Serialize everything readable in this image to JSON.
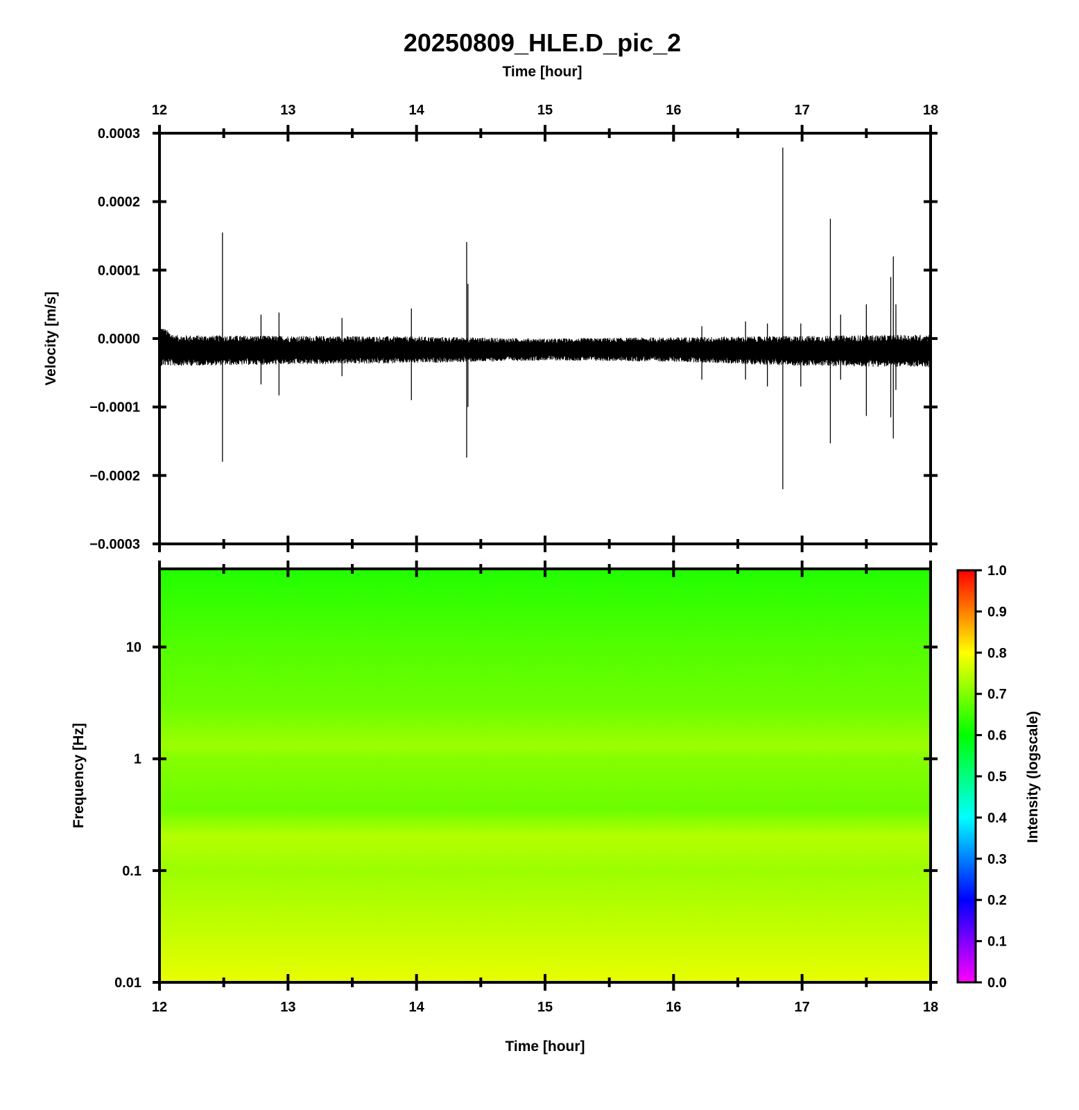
{
  "chart_data": [
    {
      "type": "line",
      "title": "20250809_HLE.D_pic_2",
      "xlabel": "Time [hour]",
      "ylabel": "Velocity [m/s]",
      "xlim": [
        12,
        18
      ],
      "ylim": [
        -0.0003,
        0.0003
      ],
      "x_ticks": [
        "12",
        "13",
        "14",
        "15",
        "16",
        "17",
        "18"
      ],
      "y_ticks": [
        "0.0003",
        "0.0002",
        "0.0001",
        "0.0000",
        "−0.0001",
        "−0.0002",
        "−0.0003"
      ],
      "grid": false,
      "series_color": "#000000",
      "baseline": -2e-05,
      "noise_band": [
        {
          "x": 12.0,
          "min": -4e-05,
          "max": 2e-05
        },
        {
          "x": 12.12,
          "min": -4e-05,
          "max": 5e-06
        },
        {
          "x": 13.0,
          "min": -3.8e-05,
          "max": 4e-06
        },
        {
          "x": 14.0,
          "min": -3.6e-05,
          "max": 3e-06
        },
        {
          "x": 15.0,
          "min": -3.2e-05,
          "max": 0.0
        },
        {
          "x": 16.0,
          "min": -3.4e-05,
          "max": 2e-06
        },
        {
          "x": 17.0,
          "min": -4e-05,
          "max": 4e-06
        },
        {
          "x": 18.0,
          "min": -4.2e-05,
          "max": 6e-06
        }
      ],
      "spikes": [
        {
          "x": 12.49,
          "max": 0.000155,
          "min": -0.00018
        },
        {
          "x": 12.79,
          "max": 3.5e-05,
          "min": -6.7e-05
        },
        {
          "x": 12.93,
          "max": 3.8e-05,
          "min": -8.3e-05
        },
        {
          "x": 13.42,
          "max": 3e-05,
          "min": -5.5e-05
        },
        {
          "x": 13.96,
          "max": 4.4e-05,
          "min": -9e-05
        },
        {
          "x": 14.39,
          "max": 0.000141,
          "min": -0.000174
        },
        {
          "x": 14.4,
          "max": 8e-05,
          "min": -0.0001
        },
        {
          "x": 16.22,
          "max": 1.8e-05,
          "min": -6e-05
        },
        {
          "x": 16.56,
          "max": 2.5e-05,
          "min": -6e-05
        },
        {
          "x": 16.73,
          "max": 2.2e-05,
          "min": -7e-05
        },
        {
          "x": 16.85,
          "max": 0.000279,
          "min": -0.00022
        },
        {
          "x": 16.99,
          "max": 2.2e-05,
          "min": -7e-05
        },
        {
          "x": 17.22,
          "max": 0.000175,
          "min": -0.000153
        },
        {
          "x": 17.3,
          "max": 3.5e-05,
          "min": -6e-05
        },
        {
          "x": 17.5,
          "max": 5e-05,
          "min": -0.000113
        },
        {
          "x": 17.69,
          "max": 9e-05,
          "min": -0.000115
        },
        {
          "x": 17.71,
          "max": 0.00012,
          "min": -0.000146
        },
        {
          "x": 17.73,
          "max": 5e-05,
          "min": -7.5e-05
        }
      ]
    },
    {
      "type": "heatmap",
      "xlabel": "Time [hour]",
      "ylabel": "Frequency [Hz]",
      "xlim": [
        12,
        18
      ],
      "ylim": [
        0.01,
        50
      ],
      "yscale": "log",
      "x_ticks": [
        "12",
        "13",
        "14",
        "15",
        "16",
        "17",
        "18"
      ],
      "y_ticks": [
        {
          "value": 10,
          "label": "10"
        },
        {
          "value": 1,
          "label": "1"
        },
        {
          "value": 0.1,
          "label": "0.1"
        },
        {
          "value": 0.01,
          "label": "0.01"
        }
      ],
      "colorbar": {
        "label": "Intensity (logscale)",
        "range": [
          0.0,
          1.0
        ],
        "ticks": [
          "0.0",
          "0.1",
          "0.2",
          "0.3",
          "0.4",
          "0.5",
          "0.6",
          "0.7",
          "0.8",
          "0.9",
          "1.0"
        ],
        "colormap": [
          "#ff00ff",
          "#0000ff",
          "#00ffff",
          "#00ff00",
          "#ffff00",
          "#ff0000"
        ]
      },
      "intensity_profile": [
        {
          "freq": 50,
          "value": 0.62
        },
        {
          "freq": 10,
          "value": 0.66
        },
        {
          "freq": 3,
          "value": 0.68
        },
        {
          "freq": 1.3,
          "value": 0.72
        },
        {
          "freq": 1,
          "value": 0.7
        },
        {
          "freq": 0.35,
          "value": 0.68
        },
        {
          "freq": 0.2,
          "value": 0.74
        },
        {
          "freq": 0.1,
          "value": 0.72
        },
        {
          "freq": 0.03,
          "value": 0.75
        },
        {
          "freq": 0.01,
          "value": 0.78
        }
      ]
    }
  ]
}
